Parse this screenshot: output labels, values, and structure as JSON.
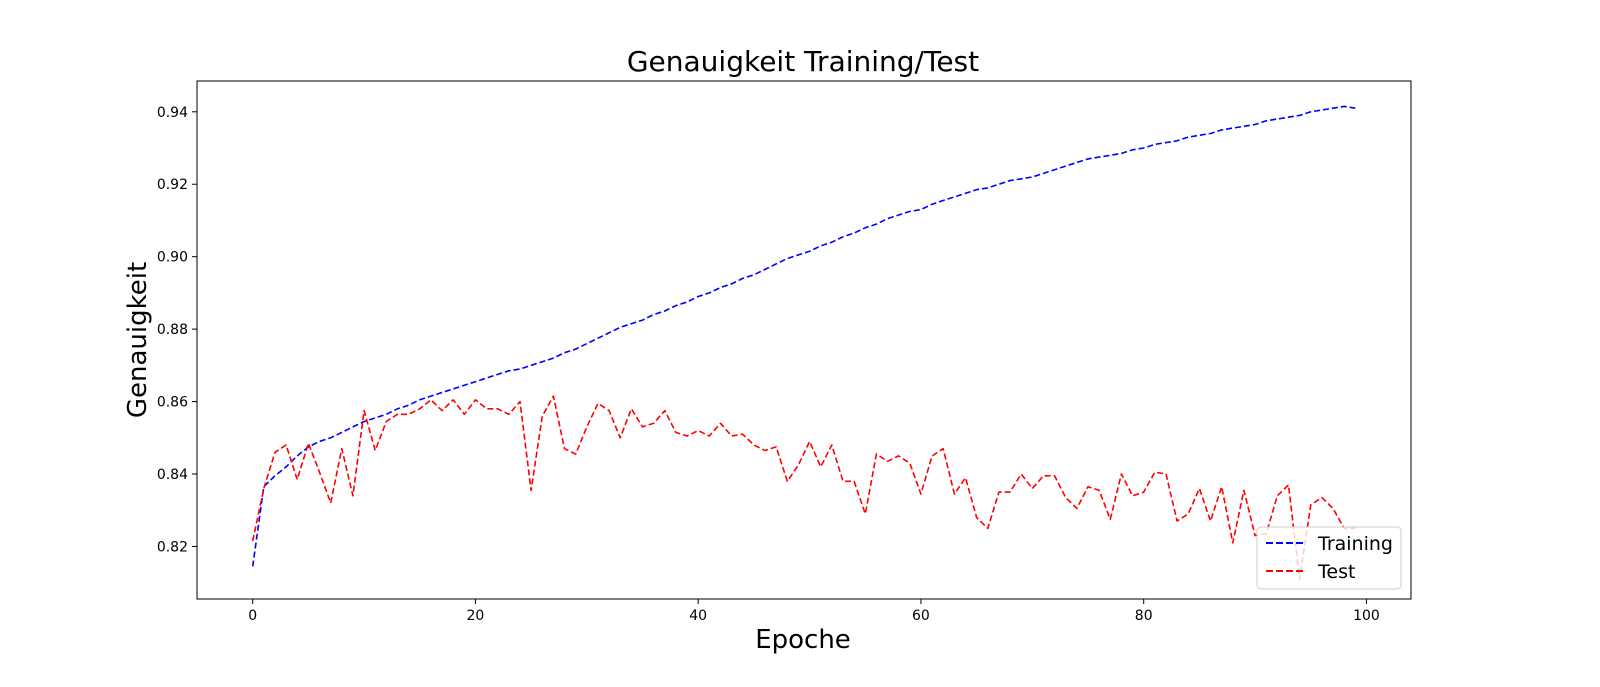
{
  "chart_data": {
    "type": "line",
    "title": "Genauigkeit Training/Test",
    "xlabel": "Epoche",
    "ylabel": "Genauigkeit",
    "xlim": [
      -5,
      104
    ],
    "ylim": [
      0.8055,
      0.9485
    ],
    "xticks": [
      0,
      20,
      40,
      60,
      80,
      100
    ],
    "yticks": [
      0.82,
      0.84,
      0.86,
      0.88,
      0.9,
      0.92,
      0.94
    ],
    "xtick_labels": [
      "0",
      "20",
      "40",
      "60",
      "80",
      "100"
    ],
    "ytick_labels": [
      "0.82",
      "0.84",
      "0.86",
      "0.88",
      "0.90",
      "0.92",
      "0.94"
    ],
    "legend_position": "lower-right",
    "grid": false,
    "series": [
      {
        "name": "Training",
        "color": "#0000ff",
        "style": "dashed",
        "x": [
          0,
          1,
          2,
          3,
          4,
          5,
          6,
          7,
          8,
          9,
          10,
          11,
          12,
          13,
          14,
          15,
          16,
          17,
          18,
          19,
          20,
          21,
          22,
          23,
          24,
          25,
          26,
          27,
          28,
          29,
          30,
          31,
          32,
          33,
          34,
          35,
          36,
          37,
          38,
          39,
          40,
          41,
          42,
          43,
          44,
          45,
          46,
          47,
          48,
          49,
          50,
          51,
          52,
          53,
          54,
          55,
          56,
          57,
          58,
          59,
          60,
          61,
          62,
          63,
          64,
          65,
          66,
          67,
          68,
          69,
          70,
          71,
          72,
          73,
          74,
          75,
          76,
          77,
          78,
          79,
          80,
          81,
          82,
          83,
          84,
          85,
          86,
          87,
          88,
          89,
          90,
          91,
          92,
          93,
          94,
          95,
          96,
          97,
          98,
          99
        ],
        "values": [
          0.8145,
          0.8365,
          0.8395,
          0.842,
          0.845,
          0.8475,
          0.849,
          0.85,
          0.8515,
          0.853,
          0.8545,
          0.8555,
          0.8565,
          0.858,
          0.859,
          0.8605,
          0.8615,
          0.8625,
          0.8635,
          0.8645,
          0.8655,
          0.8665,
          0.8675,
          0.8685,
          0.869,
          0.87,
          0.871,
          0.872,
          0.8735,
          0.8745,
          0.876,
          0.8775,
          0.879,
          0.8805,
          0.8815,
          0.8825,
          0.884,
          0.885,
          0.8865,
          0.8875,
          0.889,
          0.89,
          0.8915,
          0.8925,
          0.894,
          0.895,
          0.8965,
          0.898,
          0.8995,
          0.9005,
          0.9015,
          0.903,
          0.904,
          0.9055,
          0.9065,
          0.908,
          0.909,
          0.9105,
          0.9115,
          0.9125,
          0.913,
          0.9145,
          0.9155,
          0.9165,
          0.9175,
          0.9185,
          0.919,
          0.92,
          0.921,
          0.9215,
          0.922,
          0.923,
          0.924,
          0.925,
          0.926,
          0.927,
          0.9275,
          0.928,
          0.9285,
          0.9295,
          0.93,
          0.931,
          0.9315,
          0.932,
          0.933,
          0.9335,
          0.934,
          0.935,
          0.9355,
          0.936,
          0.9365,
          0.9375,
          0.938,
          0.9385,
          0.939,
          0.94,
          0.9405,
          0.941,
          0.9415,
          0.941
        ]
      },
      {
        "name": "Test",
        "color": "#ff0000",
        "style": "dashed",
        "x": [
          0,
          1,
          2,
          3,
          4,
          5,
          6,
          7,
          8,
          9,
          10,
          11,
          12,
          13,
          14,
          15,
          16,
          17,
          18,
          19,
          20,
          21,
          22,
          23,
          24,
          25,
          26,
          27,
          28,
          29,
          30,
          31,
          32,
          33,
          34,
          35,
          36,
          37,
          38,
          39,
          40,
          41,
          42,
          43,
          44,
          45,
          46,
          47,
          48,
          49,
          50,
          51,
          52,
          53,
          54,
          55,
          56,
          57,
          58,
          59,
          60,
          61,
          62,
          63,
          64,
          65,
          66,
          67,
          68,
          69,
          70,
          71,
          72,
          73,
          74,
          75,
          76,
          77,
          78,
          79,
          80,
          81,
          82,
          83,
          84,
          85,
          86,
          87,
          88,
          89,
          90,
          91,
          92,
          93,
          94,
          95,
          96,
          97,
          98,
          99
        ],
        "values": [
          0.8215,
          0.836,
          0.846,
          0.848,
          0.8385,
          0.8485,
          0.8405,
          0.832,
          0.847,
          0.834,
          0.8575,
          0.8465,
          0.8545,
          0.8565,
          0.8565,
          0.858,
          0.8605,
          0.8575,
          0.8605,
          0.8565,
          0.8605,
          0.858,
          0.858,
          0.8565,
          0.86,
          0.8355,
          0.856,
          0.8615,
          0.847,
          0.8455,
          0.853,
          0.8595,
          0.8575,
          0.85,
          0.858,
          0.853,
          0.854,
          0.8575,
          0.8515,
          0.8505,
          0.852,
          0.8505,
          0.854,
          0.8505,
          0.851,
          0.848,
          0.8465,
          0.8475,
          0.838,
          0.8425,
          0.849,
          0.842,
          0.848,
          0.838,
          0.838,
          0.829,
          0.8455,
          0.8435,
          0.845,
          0.843,
          0.8345,
          0.845,
          0.847,
          0.8345,
          0.839,
          0.828,
          0.825,
          0.835,
          0.835,
          0.84,
          0.836,
          0.8395,
          0.8395,
          0.8335,
          0.8305,
          0.8365,
          0.8355,
          0.8275,
          0.84,
          0.834,
          0.835,
          0.8405,
          0.84,
          0.827,
          0.829,
          0.836,
          0.827,
          0.8365,
          0.821,
          0.8355,
          0.823,
          0.8235,
          0.834,
          0.837,
          0.811,
          0.8315,
          0.8335,
          0.8305,
          0.825,
          0.825
        ]
      }
    ]
  }
}
